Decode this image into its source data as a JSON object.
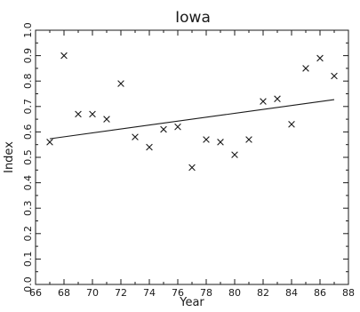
{
  "chart_data": {
    "type": "scatter",
    "title": "Iowa",
    "xlabel": "Year",
    "ylabel": "Index",
    "xlim": [
      66,
      88
    ],
    "ylim": [
      0.0,
      1.0
    ],
    "xticks": [
      "66",
      "68",
      "70",
      "72",
      "74",
      "76",
      "78",
      "80",
      "82",
      "84",
      "86",
      "88"
    ],
    "yticks": [
      "0.0",
      "0.1",
      "0.2",
      "0.3",
      "0.4",
      "0.5",
      "0.6",
      "0.7",
      "0.8",
      "0.9",
      "1.0"
    ],
    "grid": false,
    "legend": "none",
    "series": [
      {
        "marker": "x",
        "x": [
          67,
          68,
          69,
          70,
          71,
          72,
          73,
          74,
          75,
          76,
          77,
          78,
          79,
          80,
          81,
          82,
          83,
          84,
          85,
          86,
          87
        ],
        "y": [
          0.56,
          0.9,
          0.67,
          0.67,
          0.65,
          0.79,
          0.58,
          0.54,
          0.61,
          0.62,
          0.46,
          0.57,
          0.56,
          0.51,
          0.57,
          0.72,
          0.73,
          0.63,
          0.85,
          0.89,
          0.82
        ]
      }
    ],
    "trend_line": {
      "x": [
        67,
        87
      ],
      "y": [
        0.573,
        0.727
      ]
    }
  }
}
